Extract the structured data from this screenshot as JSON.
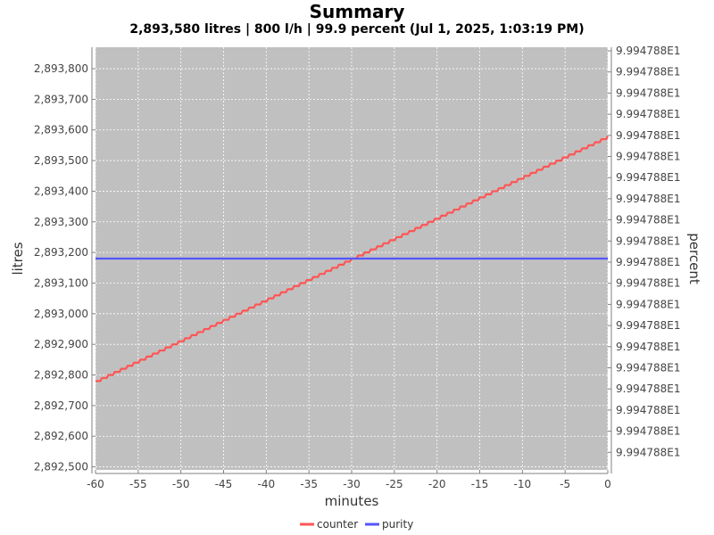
{
  "chart_data": {
    "type": "line",
    "title": "Summary",
    "subtitle": "2,893,580 litres | 800 l/h | 99.9 percent (Jul 1, 2025, 1:03:19 PM)",
    "xlabel": "minutes",
    "ylabel_left": "litres",
    "ylabel_right": "percent",
    "xlim": [
      -60,
      0
    ],
    "ylim_left": [
      2892490,
      2893870
    ],
    "x_ticks": [
      -60,
      -55,
      -50,
      -45,
      -40,
      -35,
      -30,
      -25,
      -20,
      -15,
      -10,
      -5,
      0
    ],
    "y_ticks_left": [
      2892500,
      2892600,
      2892700,
      2892800,
      2892900,
      2893000,
      2893100,
      2893200,
      2893300,
      2893400,
      2893500,
      2893600,
      2893700,
      2893800
    ],
    "y_tick_labels_left": [
      "2,892,500",
      "2,892,600",
      "2,892,700",
      "2,892,800",
      "2,892,900",
      "2,893,000",
      "2,893,100",
      "2,893,200",
      "2,893,300",
      "2,893,400",
      "2,893,500",
      "2,893,600",
      "2,893,700",
      "2,893,800"
    ],
    "y_tick_labels_right": [
      "9.994788E1",
      "9.994788E1",
      "9.994788E1",
      "9.994788E1",
      "9.994788E1",
      "9.994788E1",
      "9.994788E1",
      "9.994788E1",
      "9.994788E1",
      "9.994788E1",
      "9.994788E1",
      "9.994788E1",
      "9.994788E1",
      "9.994788E1",
      "9.994788E1",
      "9.994788E1",
      "9.994788E1",
      "9.994788E1",
      "9.994788E1",
      "9.994788E1"
    ],
    "grid": true,
    "legend_position": "bottom-center",
    "series": [
      {
        "name": "counter",
        "axis": "left",
        "color": "#ff5555",
        "x": [
          -60,
          0
        ],
        "y": [
          2892780,
          2893580
        ],
        "step": 10
      },
      {
        "name": "purity",
        "axis": "right",
        "color": "#5555ff",
        "x": [
          -60,
          0
        ],
        "y": [
          99.94788,
          99.94788
        ]
      }
    ]
  }
}
